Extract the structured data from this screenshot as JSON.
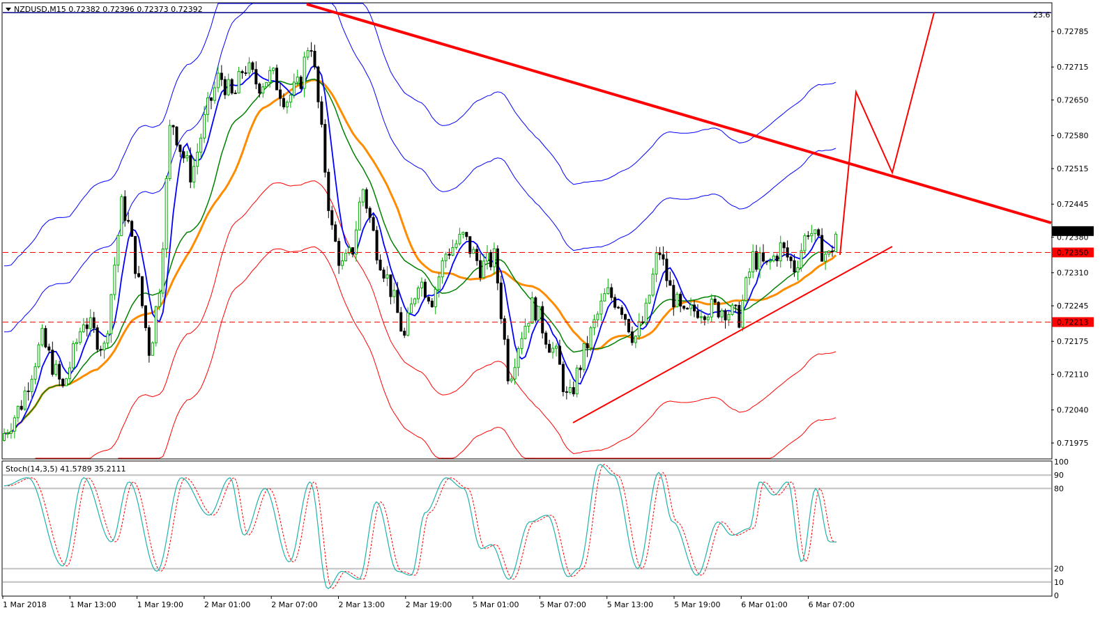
{
  "window": {
    "symbol_header": "NZDUSD,M15  0.72382 0.72396 0.72373 0.72392",
    "indicator_header": "Stoch(14,3,5) 41.5789 35.2111",
    "fib_label": "23.6"
  },
  "chart_data": {
    "type": "candlestick",
    "symbol": "NZDUSD",
    "timeframe": "M15",
    "ohlc": {
      "open": 0.72382,
      "high": 0.72396,
      "low": 0.72373,
      "close": 0.72392
    },
    "price_axis": [
      "0.72785",
      "0.72715",
      "0.72650",
      "0.72580",
      "0.72515",
      "0.72445",
      "0.72380",
      "0.72310",
      "0.72245",
      "0.72175",
      "0.72110",
      "0.72040",
      "0.71975"
    ],
    "price_range": [
      0.71945,
      0.7284
    ],
    "time_axis": [
      "1 Mar 2018",
      "1 Mar 13:00",
      "1 Mar 19:00",
      "2 Mar 01:00",
      "2 Mar 07:00",
      "2 Mar 13:00",
      "2 Mar 19:00",
      "5 Mar 01:00",
      "5 Mar 07:00",
      "5 Mar 13:00",
      "5 Mar 19:00",
      "6 Mar 01:00",
      "6 Mar 07:00"
    ],
    "current_price_tag": "0.72392",
    "horizontal_levels": [
      {
        "label": "0.72350",
        "value": 0.7235,
        "color": "#ff0000",
        "style": "dashed"
      },
      {
        "label": "0.72213",
        "value": 0.72213,
        "color": "#ff0000",
        "style": "dashed"
      }
    ],
    "fib_level": {
      "label": "23.6",
      "value": 0.72822,
      "color": "#000080"
    },
    "stochastic": {
      "name": "Stoch(14,3,5)",
      "main": 41.5789,
      "signal": 35.2111,
      "levels": [
        100,
        90,
        80,
        20,
        10,
        0
      ],
      "axis_labels": [
        "100",
        "90",
        "80",
        "20",
        "10",
        "0"
      ]
    },
    "colors": {
      "background": "#ffffff",
      "bull_candle": "#00aa00",
      "bear_candle": "#000000",
      "ma_fast": "#0000ff",
      "ma_slow": "#008000",
      "ma_orange": "#ff8c00",
      "bands_upper": "#0000ff",
      "bands_lower": "#ff0000",
      "trendline": "#ff0000",
      "stoch_main": "#20b2aa",
      "stoch_signal": "#ff0000",
      "level_lines": "#c0c0c0"
    }
  }
}
